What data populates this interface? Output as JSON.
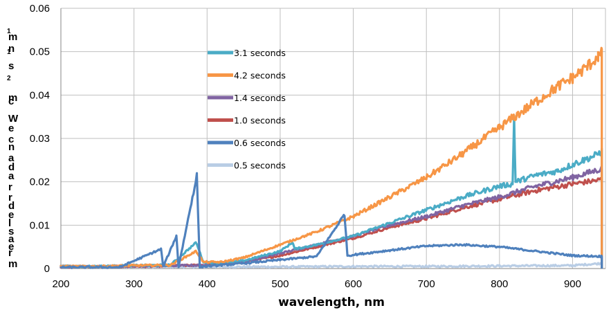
{
  "chart_data": {
    "type": "line",
    "xlabel": "wavelength, nm",
    "ylabel_fragments": [
      "1",
      "m",
      "n",
      "1",
      "s",
      "2",
      "m",
      "c",
      "W",
      "e",
      "c",
      "n",
      "a",
      "d",
      "a",
      "r",
      "r",
      "d",
      "e",
      "l",
      "s",
      "a",
      "e",
      "r",
      "m"
    ],
    "xlim": [
      200,
      945
    ],
    "ylim": [
      0,
      0.06
    ],
    "x_ticks": [
      "200",
      "300",
      "400",
      "500",
      "600",
      "700",
      "800",
      "900"
    ],
    "y_ticks": [
      "0",
      "0.01",
      "0.02",
      "0.03",
      "0.04",
      "0.05",
      "0.06"
    ],
    "grid": true,
    "legend_position": "center-left inside plot",
    "legend": [
      "3.1 seconds",
      "4.2 seconds",
      "1.4 seconds",
      "1.0 seconds",
      "0.6 seconds",
      "0.5 seconds"
    ],
    "series": [
      {
        "name": "3.1 seconds",
        "color": "#4bacc6",
        "points": [
          [
            200,
            0.0005
          ],
          [
            250,
            0.0005
          ],
          [
            300,
            0.0007
          ],
          [
            350,
            0.0008
          ],
          [
            385,
            0.006
          ],
          [
            395,
            0.0015
          ],
          [
            420,
            0.0012
          ],
          [
            450,
            0.0018
          ],
          [
            500,
            0.004
          ],
          [
            517,
            0.006
          ],
          [
            520,
            0.0045
          ],
          [
            550,
            0.0055
          ],
          [
            600,
            0.0075
          ],
          [
            650,
            0.0105
          ],
          [
            700,
            0.0135
          ],
          [
            750,
            0.0165
          ],
          [
            800,
            0.019
          ],
          [
            818,
            0.0195
          ],
          [
            820,
            0.035
          ],
          [
            822,
            0.02
          ],
          [
            850,
            0.0215
          ],
          [
            880,
            0.0225
          ],
          [
            900,
            0.024
          ],
          [
            930,
            0.026
          ],
          [
            940,
            0.027
          ]
        ]
      },
      {
        "name": "4.2 seconds",
        "color": "#f79646",
        "points": [
          [
            200,
            0.0005
          ],
          [
            250,
            0.0005
          ],
          [
            300,
            0.0007
          ],
          [
            350,
            0.0008
          ],
          [
            385,
            0.004
          ],
          [
            395,
            0.0015
          ],
          [
            420,
            0.0015
          ],
          [
            450,
            0.0025
          ],
          [
            500,
            0.0055
          ],
          [
            550,
            0.0085
          ],
          [
            600,
            0.012
          ],
          [
            650,
            0.0165
          ],
          [
            700,
            0.021
          ],
          [
            750,
            0.0265
          ],
          [
            800,
            0.0325
          ],
          [
            850,
            0.0385
          ],
          [
            880,
            0.042
          ],
          [
            900,
            0.044
          ],
          [
            920,
            0.0465
          ],
          [
            935,
            0.049
          ],
          [
            940,
            0.0495
          ]
        ]
      },
      {
        "name": "1.4 seconds",
        "color": "#8064a2",
        "points": [
          [
            200,
            0.0004
          ],
          [
            300,
            0.0005
          ],
          [
            400,
            0.0008
          ],
          [
            450,
            0.0015
          ],
          [
            500,
            0.0035
          ],
          [
            550,
            0.0055
          ],
          [
            600,
            0.0075
          ],
          [
            650,
            0.01
          ],
          [
            700,
            0.012
          ],
          [
            750,
            0.0145
          ],
          [
            800,
            0.0165
          ],
          [
            850,
            0.019
          ],
          [
            900,
            0.021
          ],
          [
            940,
            0.023
          ]
        ]
      },
      {
        "name": "1.0 seconds",
        "color": "#c0504d",
        "points": [
          [
            200,
            0.0004
          ],
          [
            300,
            0.0005
          ],
          [
            400,
            0.0008
          ],
          [
            450,
            0.0015
          ],
          [
            500,
            0.003
          ],
          [
            550,
            0.005
          ],
          [
            600,
            0.007
          ],
          [
            650,
            0.0095
          ],
          [
            700,
            0.0115
          ],
          [
            750,
            0.014
          ],
          [
            800,
            0.016
          ],
          [
            850,
            0.018
          ],
          [
            900,
            0.0195
          ],
          [
            940,
            0.0205
          ]
        ]
      },
      {
        "name": "0.6 seconds",
        "color": "#4f81bd",
        "points": [
          [
            200,
            0.0003
          ],
          [
            280,
            0.0003
          ],
          [
            337,
            0.0045
          ],
          [
            340,
            0.0004
          ],
          [
            358,
            0.0075
          ],
          [
            361,
            0.0004
          ],
          [
            386,
            0.0215
          ],
          [
            390,
            0.0004
          ],
          [
            420,
            0.0008
          ],
          [
            450,
            0.0012
          ],
          [
            500,
            0.002
          ],
          [
            550,
            0.0028
          ],
          [
            588,
            0.0125
          ],
          [
            592,
            0.003
          ],
          [
            650,
            0.0042
          ],
          [
            700,
            0.0052
          ],
          [
            750,
            0.0055
          ],
          [
            800,
            0.005
          ],
          [
            850,
            0.004
          ],
          [
            900,
            0.003
          ],
          [
            940,
            0.0028
          ]
        ]
      },
      {
        "name": "0.5 seconds",
        "color": "#b9cde5",
        "points": [
          [
            200,
            0.0006
          ],
          [
            300,
            0.0004
          ],
          [
            400,
            0.0004
          ],
          [
            500,
            0.0004
          ],
          [
            600,
            0.0005
          ],
          [
            700,
            0.0005
          ],
          [
            800,
            0.0006
          ],
          [
            900,
            0.0007
          ],
          [
            940,
            0.0012
          ]
        ]
      }
    ]
  }
}
